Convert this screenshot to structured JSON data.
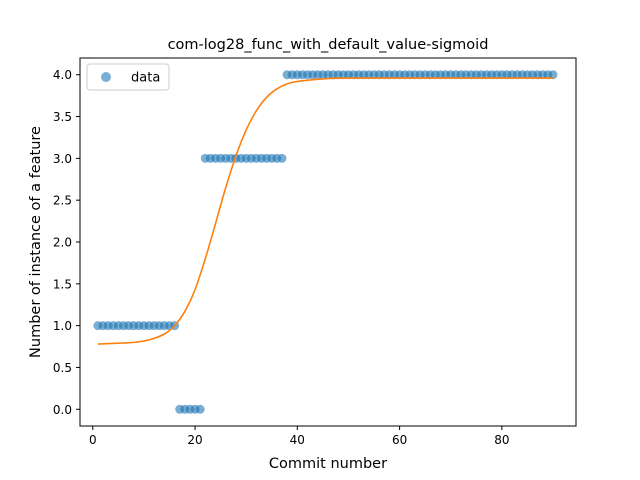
{
  "chart_data": {
    "type": "scatter",
    "title": "com-log28_func_with_default_value-sigmoid",
    "xlabel": "Commit number",
    "ylabel": "Number of instance of a feature",
    "xlim": [
      -2.5,
      94.5
    ],
    "ylim": [
      -0.2,
      4.2
    ],
    "xticks": [
      0,
      20,
      40,
      60,
      80
    ],
    "xtick_labels": [
      "0",
      "20",
      "40",
      "60",
      "80"
    ],
    "yticks": [
      0,
      0.5,
      1,
      1.5,
      2,
      2.5,
      3,
      3.5,
      4
    ],
    "ytick_labels": [
      "0.0",
      "0.5",
      "1.0",
      "1.5",
      "2.0",
      "2.5",
      "3.0",
      "3.5",
      "4.0"
    ],
    "grid": false,
    "legend_position": "upper-left",
    "series": [
      {
        "name": "data",
        "kind": "scatter",
        "color": "#1f77b4",
        "segments": [
          {
            "x_from": 1,
            "x_to": 16,
            "y": 1
          },
          {
            "x_from": 17,
            "x_to": 21,
            "y": 0
          },
          {
            "x_from": 22,
            "x_to": 37,
            "y": 3
          },
          {
            "x_from": 38,
            "x_to": 90,
            "y": 4
          }
        ]
      },
      {
        "kind": "line",
        "color": "#ff7f0e",
        "curve": "sigmoid",
        "x_range": [
          1,
          90
        ],
        "points": [
          [
            1,
            0.78
          ],
          [
            5,
            0.79
          ],
          [
            8,
            0.8
          ],
          [
            11,
            0.83
          ],
          [
            14,
            0.9
          ],
          [
            16,
            1.0
          ],
          [
            18,
            1.17
          ],
          [
            20,
            1.43
          ],
          [
            22,
            1.8
          ],
          [
            24,
            2.22
          ],
          [
            26,
            2.65
          ],
          [
            28,
            3.03
          ],
          [
            30,
            3.34
          ],
          [
            32,
            3.57
          ],
          [
            34,
            3.73
          ],
          [
            36,
            3.83
          ],
          [
            38,
            3.89
          ],
          [
            40,
            3.92
          ],
          [
            45,
            3.95
          ],
          [
            50,
            3.96
          ],
          [
            60,
            3.96
          ],
          [
            70,
            3.96
          ],
          [
            80,
            3.96
          ],
          [
            90,
            3.96
          ]
        ]
      }
    ]
  }
}
